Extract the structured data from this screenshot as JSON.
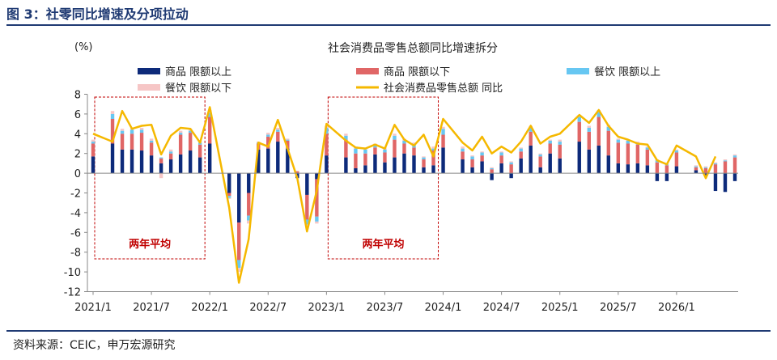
{
  "figure_title": "图 3：社零同比增速及分项拉动",
  "source": "资料来源：CEIC，申万宏源研究",
  "colors": {
    "goods_above": "#0d2a7a",
    "goods_below": "#e06666",
    "catering_above": "#67c7f2",
    "catering_below": "#f6c6c6",
    "total": "#f5b800",
    "annotation": "#c00000"
  },
  "chart_data": {
    "type": "bar",
    "stacked": true,
    "title": "社会消费品零售总额同比增速拆分",
    "ylabel": "(%)",
    "ylim": [
      -12,
      8
    ],
    "yticks": [
      -12,
      -10,
      -8,
      -6,
      -4,
      -2,
      0,
      2,
      4,
      6,
      8
    ],
    "grid": false,
    "legend": "top",
    "x_tick_labels": [
      "2021/1",
      "2021/7",
      "2022/1",
      "2022/7",
      "2023/1",
      "2023/7",
      "2024/1",
      "2024/7",
      "2025/1",
      "2025/7",
      "2026/1"
    ],
    "x_tick_period_index": [
      0,
      6,
      12,
      18,
      24,
      30,
      36,
      42,
      48,
      54,
      60
    ],
    "annotations": [
      {
        "text": "两年平均",
        "from_period_index": 0,
        "to_period_index": 11
      },
      {
        "text": "两年平均",
        "from_period_index": 24,
        "to_period_index": 35
      }
    ],
    "periods": [
      "2021/1",
      "2021/2",
      "2021/3",
      "2021/4",
      "2021/5",
      "2021/6",
      "2021/7",
      "2021/8",
      "2021/9",
      "2021/10",
      "2021/11",
      "2021/12",
      "2022/1",
      "2022/2",
      "2022/3",
      "2022/4",
      "2022/5",
      "2022/6",
      "2022/7",
      "2022/8",
      "2022/9",
      "2022/10",
      "2022/11",
      "2022/12",
      "2023/1",
      "2023/2",
      "2023/3",
      "2023/4",
      "2023/5",
      "2023/6",
      "2023/7",
      "2023/8",
      "2023/9",
      "2023/10",
      "2023/11",
      "2023/12",
      "2024/1",
      "2024/2",
      "2024/3",
      "2024/4",
      "2024/5",
      "2024/6",
      "2024/7",
      "2024/8",
      "2024/9",
      "2024/10",
      "2024/11",
      "2024/12",
      "2025/1",
      "2025/2",
      "2025/3",
      "2025/4",
      "2025/5",
      "2025/6",
      "2025/7",
      "2025/8",
      "2025/9",
      "2025/10",
      "2025/11",
      "2025/12",
      "2026/1",
      "2026/2",
      "2026/3",
      "2026/4",
      "2026/5",
      "2026/6",
      "2026/7"
    ],
    "bar_periods": [
      "2021/1",
      "2021/3",
      "2021/4",
      "2021/5",
      "2021/6",
      "2021/7",
      "2021/8",
      "2021/9",
      "2021/10",
      "2021/11",
      "2021/12",
      "2022/1",
      "2022/3",
      "2022/4",
      "2022/5",
      "2022/6",
      "2022/7",
      "2022/8",
      "2022/9",
      "2022/10",
      "2022/11",
      "2022/12",
      "2023/1",
      "2023/3",
      "2023/4",
      "2023/5",
      "2023/6",
      "2023/7",
      "2023/8",
      "2023/9",
      "2023/10",
      "2023/11",
      "2023/12",
      "2024/1",
      "2024/3",
      "2024/4",
      "2024/5",
      "2024/6",
      "2024/7",
      "2024/8",
      "2024/9",
      "2024/10",
      "2024/11",
      "2024/12",
      "2025/1",
      "2025/3",
      "2025/4",
      "2025/5",
      "2025/6",
      "2025/7",
      "2025/8",
      "2025/9",
      "2025/10",
      "2025/11",
      "2025/12",
      "2026/1",
      "2026/3",
      "2026/4",
      "2026/5",
      "2026/6",
      "2026/7"
    ],
    "series": [
      {
        "name": "商品 限额以上",
        "kind": "bar",
        "values": [
          1.7,
          3.0,
          2.4,
          2.4,
          2.3,
          1.8,
          1.0,
          1.4,
          1.9,
          2.3,
          1.6,
          3.0,
          -2.0,
          -5.0,
          -2.0,
          2.4,
          2.5,
          3.2,
          2.5,
          -0.5,
          -2.2,
          -0.6,
          1.8,
          1.6,
          0.5,
          0.8,
          1.9,
          1.1,
          1.6,
          2.0,
          1.8,
          0.6,
          0.8,
          2.6,
          1.4,
          0.6,
          1.2,
          -0.7,
          1.0,
          -0.5,
          1.5,
          2.8,
          0.6,
          2.0,
          1.5,
          3.2,
          2.4,
          2.8,
          1.8,
          1.0,
          0.9,
          1.0,
          0.8,
          -0.8,
          -0.8,
          0.7,
          0.3,
          -0.3,
          -1.8,
          -1.9,
          -0.8
        ]
      },
      {
        "name": "商品 限额以下",
        "kind": "bar",
        "values": [
          1.3,
          2.5,
          1.6,
          1.6,
          1.8,
          1.3,
          0.5,
          0.6,
          2.0,
          1.8,
          1.3,
          2.7,
          -0.3,
          -3.8,
          -2.3,
          0.6,
          1.2,
          1.0,
          0.8,
          0.2,
          -2.5,
          -3.8,
          2.2,
          1.8,
          1.5,
          1.2,
          0.7,
          1.0,
          1.8,
          1.0,
          0.8,
          0.8,
          1.5,
          1.3,
          0.8,
          0.8,
          0.6,
          0.4,
          0.8,
          0.9,
          0.7,
          1.4,
          1.1,
          1.0,
          1.4,
          2.0,
          1.8,
          2.9,
          2.5,
          2.1,
          2.1,
          1.9,
          1.6,
          1.1,
          0.8,
          1.4,
          0.3,
          0.5,
          0.9,
          1.2,
          1.6
        ]
      },
      {
        "name": "餐饮 限额以上",
        "kind": "bar",
        "values": [
          0.2,
          0.5,
          0.3,
          0.4,
          0.3,
          0.2,
          0.1,
          0.2,
          0.2,
          0.2,
          0.2,
          0.4,
          -0.2,
          -0.8,
          -0.5,
          0.1,
          0.2,
          0.2,
          0.1,
          0.0,
          -0.5,
          -0.5,
          0.6,
          0.4,
          0.5,
          0.4,
          0.3,
          0.3,
          0.4,
          0.3,
          0.3,
          0.2,
          0.2,
          0.6,
          0.3,
          0.3,
          0.3,
          0.1,
          0.3,
          0.2,
          0.3,
          0.4,
          0.2,
          0.3,
          0.3,
          0.5,
          0.4,
          0.5,
          0.4,
          0.3,
          0.3,
          0.2,
          0.2,
          0.2,
          0.1,
          0.2,
          0.1,
          0.1,
          0.1,
          0.1,
          0.2
        ]
      },
      {
        "name": "餐饮 限额以下",
        "kind": "bar",
        "values": [
          0.2,
          0.3,
          0.2,
          0.2,
          0.2,
          0.2,
          -0.5,
          0.2,
          0.2,
          0.2,
          0.2,
          0.3,
          -0.1,
          -0.4,
          -0.3,
          0.1,
          0.2,
          0.2,
          0.1,
          0.0,
          -0.2,
          -0.2,
          0.2,
          0.2,
          0.2,
          0.2,
          0.1,
          0.2,
          0.2,
          0.2,
          0.2,
          0.1,
          0.2,
          0.2,
          0.2,
          0.1,
          0.1,
          0.1,
          0.1,
          0.1,
          0.1,
          0.2,
          0.1,
          0.1,
          0.2,
          0.2,
          0.2,
          0.2,
          0.2,
          0.1,
          0.1,
          0.1,
          0.1,
          0.1,
          0.1,
          0.1,
          0.1,
          0.1,
          0.1,
          0.1,
          0.1
        ]
      },
      {
        "name": "社会消费品零售总额 同比",
        "kind": "line",
        "values": [
          4.0,
          null,
          3.2,
          6.3,
          4.5,
          4.8,
          4.9,
          1.9,
          3.8,
          4.6,
          4.5,
          3.1,
          6.7,
          null,
          -3.5,
          -11.1,
          -6.7,
          3.1,
          2.7,
          5.4,
          2.5,
          -0.5,
          -5.9,
          -1.8,
          5.0,
          null,
          3.3,
          2.6,
          2.5,
          2.9,
          2.5,
          4.9,
          3.4,
          2.8,
          3.9,
          1.7,
          5.5,
          null,
          3.1,
          2.3,
          3.7,
          2.0,
          2.7,
          2.1,
          3.2,
          4.8,
          3.0,
          3.7,
          4.0,
          null,
          5.9,
          5.1,
          6.4,
          4.8,
          3.7,
          3.4,
          3.0,
          2.9,
          1.3,
          0.9,
          2.8,
          null,
          1.7,
          -0.5,
          1.7,
          null,
          null
        ]
      }
    ]
  }
}
